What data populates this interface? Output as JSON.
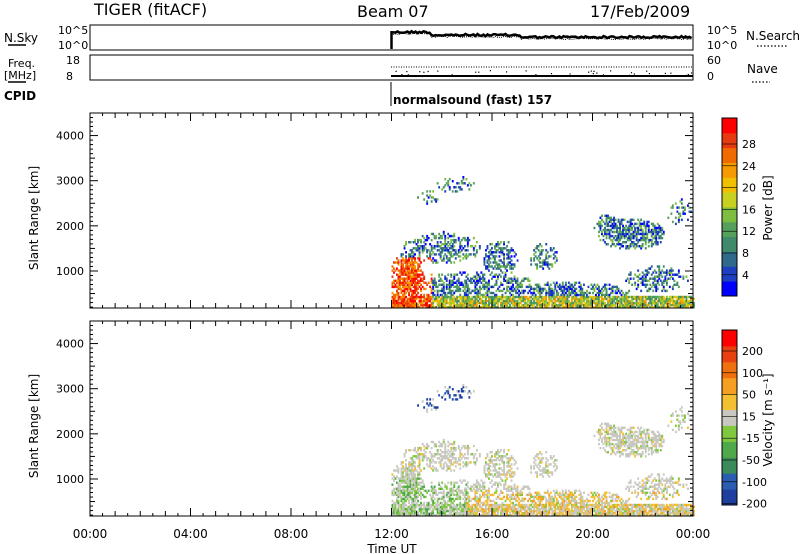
{
  "header": {
    "radar": "TIGER (fitACF)",
    "beam": "Beam 07",
    "date": "17/Feb/2009"
  },
  "strips": {
    "nsky_label": "N.Sky",
    "nsky_ticks": [
      "10^5",
      "10^0"
    ],
    "nsearch_label": "N.Search",
    "nsearch_ticks": [
      "10^5",
      "10^0"
    ],
    "freq_label": "Freq.",
    "freq_unit": "[MHz]",
    "freq_ticks": [
      "18",
      "8"
    ],
    "nave_label": "Nave",
    "nave_ticks": [
      "60",
      "0"
    ],
    "cpid_label": "CPID",
    "cpid_value": "normalsound (fast) 157"
  },
  "chart_data": [
    {
      "type": "heatmap",
      "name": "power",
      "xlabel": "",
      "ylabel": "Slant Range [km]",
      "y_ticks": [
        "4000",
        "3000",
        "2000",
        "1000"
      ],
      "ylim": [
        180,
        4500
      ],
      "x_hours_range": [
        0,
        24
      ],
      "data_start_hour": 12,
      "colorbar": {
        "label": "Power [dB]",
        "ticks": [
          "28",
          "24",
          "20",
          "16",
          "12",
          "8",
          "4"
        ],
        "colors": [
          "#0000ff",
          "#1e3fc0",
          "#2f6a8a",
          "#3f8a6a",
          "#55a05a",
          "#7dbe40",
          "#c8d020",
          "#f0c000",
          "#f59a00",
          "#f06a00",
          "#e83a10",
          "#ff0000"
        ]
      }
    },
    {
      "type": "heatmap",
      "name": "velocity",
      "xlabel": "Time UT",
      "ylabel": "Slant Range [km]",
      "x_ticks": [
        "00:00",
        "04:00",
        "08:00",
        "12:00",
        "16:00",
        "20:00",
        "00:00"
      ],
      "y_ticks": [
        "4000",
        "3000",
        "2000",
        "1000"
      ],
      "ylim": [
        180,
        4500
      ],
      "colorbar": {
        "label": "Velocity [m s⁻¹]",
        "ticks": [
          "200",
          "100",
          "50",
          "15",
          "-15",
          "-50",
          "-100",
          "-200"
        ],
        "colors": [
          "#1e3fa0",
          "#2a5cb0",
          "#3a8a5a",
          "#4fa84a",
          "#80c840",
          "#c8c8c0",
          "#f2c030",
          "#f5a020",
          "#f07010",
          "#e84010",
          "#ff0000"
        ]
      }
    }
  ]
}
